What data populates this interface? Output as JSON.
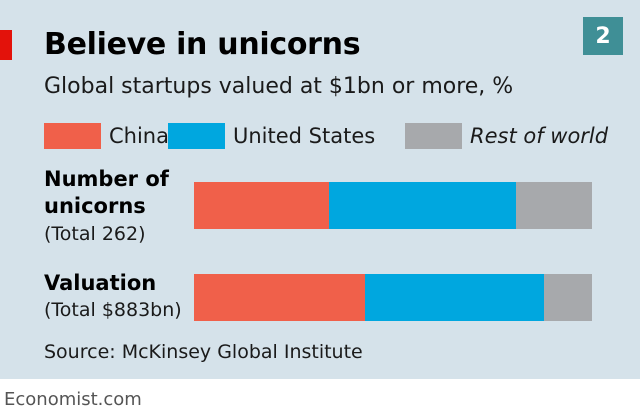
{
  "header": {
    "title": "Believe in unicorns",
    "subtitle": "Global startups valued at $1bn or more, %",
    "badge": "2"
  },
  "legend": {
    "china": "China",
    "us": "United States",
    "row": "Rest of world"
  },
  "colors": {
    "china": "#f0604a",
    "us": "#00a7df",
    "row": "#a7a9ac",
    "panel": "#d5e2ea",
    "accent": "#e3120b"
  },
  "rows": [
    {
      "label_line1": "Number of",
      "label_line2": "unicorns",
      "sub": "(Total 262)"
    },
    {
      "label_line1": "Valuation",
      "sub": "(Total $883bn)"
    }
  ],
  "chart_data": {
    "type": "bar",
    "stacked": true,
    "orientation": "horizontal",
    "unit": "%",
    "title": "Believe in unicorns",
    "subtitle": "Global startups valued at $1bn or more, %",
    "categories": [
      "Number of unicorns (Total 262)",
      "Valuation (Total $883bn)"
    ],
    "series": [
      {
        "name": "China",
        "values": [
          34,
          43
        ]
      },
      {
        "name": "United States",
        "values": [
          47,
          45
        ]
      },
      {
        "name": "Rest of world",
        "values": [
          19,
          12
        ]
      }
    ],
    "xlim": [
      0,
      100
    ],
    "grid": false,
    "legend_position": "top"
  },
  "source": "Source: McKinsey Global Institute",
  "footer": "Economist.com"
}
